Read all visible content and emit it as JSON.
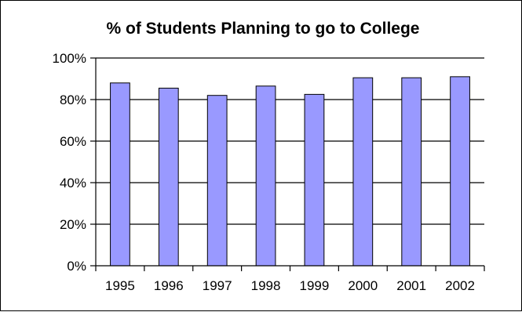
{
  "chart_data": {
    "type": "bar",
    "title": "% of Students Planning to go to College",
    "xlabel": "",
    "ylabel": "",
    "categories": [
      "1995",
      "1996",
      "1997",
      "1998",
      "1999",
      "2000",
      "2001",
      "2002"
    ],
    "values": [
      88,
      85.5,
      82,
      86.5,
      82.5,
      90.5,
      90.5,
      91
    ],
    "ylim": [
      0,
      100
    ],
    "yticks": [
      "0%",
      "20%",
      "40%",
      "60%",
      "80%",
      "100%"
    ],
    "grid": true,
    "legend": "none",
    "colors": {
      "bar_fill": "#9999ff",
      "bar_stroke": "#000000"
    }
  }
}
